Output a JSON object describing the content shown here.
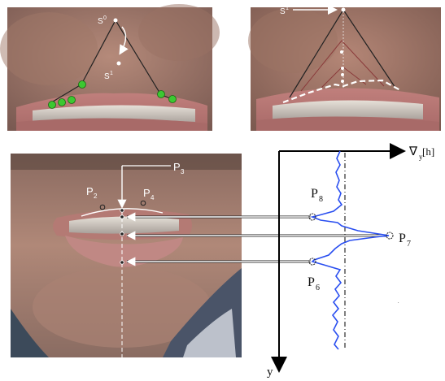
{
  "labels": {
    "s0": "S",
    "s0_sup": "0",
    "s1": "S",
    "s1_sup": "1",
    "s1_right": "S",
    "s1_right_sup": "1",
    "p2": "P",
    "p2_sub": "2",
    "p3": "P",
    "p3_sub": "3",
    "p4": "P",
    "p4_sub": "4",
    "p6": "P",
    "p6_sub": "6",
    "p7": "P",
    "p7_sub": "7",
    "p8": "P",
    "p8_sub": "8",
    "grad_nabla": "∇",
    "grad_sub": "y",
    "grad_arg": "[h]",
    "y_axis": "y"
  },
  "colors": {
    "signal": "#2a4ff0",
    "green_point": "#3cc832",
    "arrow": "#ffffff",
    "axis": "#000000"
  }
}
